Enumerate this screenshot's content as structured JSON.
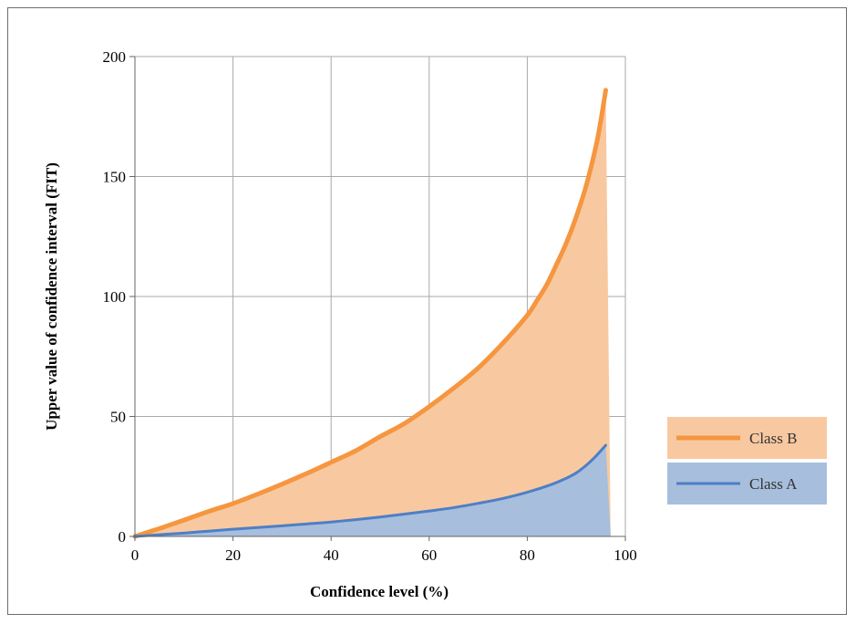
{
  "chart_data": {
    "type": "area",
    "title": "",
    "xlabel": "Confidence level (%)",
    "ylabel": "Upper value of confidence interval (FIT)",
    "xlim": [
      0,
      100
    ],
    "ylim": [
      0,
      200
    ],
    "xticks": [
      0,
      20,
      40,
      60,
      80,
      100
    ],
    "yticks": [
      0,
      50,
      100,
      150,
      200
    ],
    "grid": true,
    "legend_position": "right",
    "series": [
      {
        "name": "Class B",
        "color": "#f59640",
        "fill": "#f8c9a0",
        "x": [
          0,
          5,
          10,
          15,
          20,
          25,
          30,
          35,
          40,
          45,
          50,
          55,
          60,
          65,
          70,
          75,
          80,
          82,
          84,
          86,
          88,
          90,
          92,
          94,
          95,
          96
        ],
        "y": [
          0,
          3.3,
          6.8,
          10.4,
          13.7,
          17.6,
          21.8,
          26.2,
          30.9,
          35.7,
          41.6,
          47.1,
          54.1,
          61.8,
          70.2,
          80.5,
          92.2,
          98.4,
          105.0,
          113.5,
          122.5,
          133.3,
          146.1,
          162.6,
          173.4,
          186.0
        ]
      },
      {
        "name": "Class A",
        "color": "#4e7fc5",
        "fill": "#a7bedd",
        "x": [
          0,
          5,
          10,
          15,
          20,
          25,
          30,
          35,
          40,
          45,
          50,
          55,
          60,
          65,
          70,
          75,
          80,
          85,
          88,
          90,
          92,
          94,
          96
        ],
        "y": [
          0,
          0.7,
          1.4,
          2.2,
          3.0,
          3.7,
          4.4,
          5.2,
          6.0,
          7.0,
          8.1,
          9.3,
          10.6,
          12.0,
          13.8,
          15.8,
          18.4,
          21.7,
          24.3,
          26.5,
          29.6,
          33.5,
          38.0
        ]
      }
    ]
  }
}
